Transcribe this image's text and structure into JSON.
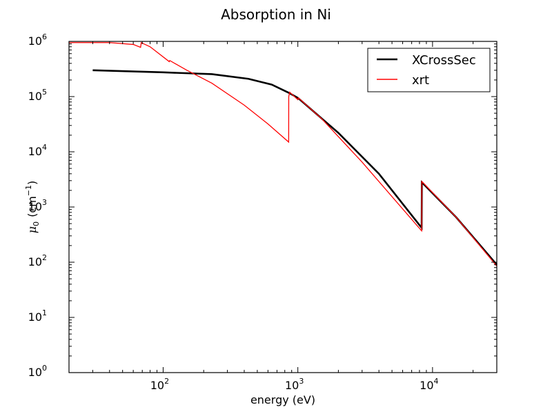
{
  "chart_data": {
    "type": "line",
    "title": "Absorption in Ni",
    "xlabel": "energy (eV)",
    "ylabel": {
      "symbol": "μ",
      "subscript": "0",
      "unit_open": "(cm",
      "unit_exp": "−1",
      "unit_close": ")"
    },
    "x_scale": "log",
    "y_scale": "log",
    "xlim": [
      20,
      30000
    ],
    "ylim": [
      1,
      1000000
    ],
    "grid": false,
    "legend_position": "top-right",
    "x_ticks": [
      {
        "base": "10",
        "exp": "2",
        "value": 100
      },
      {
        "base": "10",
        "exp": "3",
        "value": 1000
      },
      {
        "base": "10",
        "exp": "4",
        "value": 10000
      }
    ],
    "y_ticks": [
      {
        "base": "10",
        "exp": "0",
        "value": 1
      },
      {
        "base": "10",
        "exp": "1",
        "value": 10
      },
      {
        "base": "10",
        "exp": "2",
        "value": 100
      },
      {
        "base": "10",
        "exp": "3",
        "value": 1000
      },
      {
        "base": "10",
        "exp": "4",
        "value": 10000
      },
      {
        "base": "10",
        "exp": "5",
        "value": 100000
      },
      {
        "base": "10",
        "exp": "6",
        "value": 1000000
      }
    ],
    "series": [
      {
        "name": "XCrossSec",
        "color": "#000000",
        "x": [
          30,
          100,
          230,
          430,
          640,
          840,
          1000,
          2000,
          4000,
          8300,
          8333,
          15000,
          30000
        ],
        "y": [
          300000,
          275000,
          255000,
          210000,
          165000,
          120000,
          95000,
          22000,
          4000,
          420,
          2800,
          650,
          90
        ]
      },
      {
        "name": "xrt",
        "color": "#ff0000",
        "x": [
          20,
          40,
          60,
          68,
          68.8,
          80,
          111,
          112,
          150,
          230,
          400,
          600,
          855,
          856,
          870,
          1000,
          1008,
          1500,
          3000,
          8300,
          8333,
          15000,
          30000
        ],
        "y": [
          950000,
          950000,
          880000,
          780000,
          950000,
          800000,
          430000,
          450000,
          300000,
          175000,
          70000,
          32000,
          15000,
          100000,
          120000,
          88000,
          95000,
          40000,
          6500,
          370,
          2900,
          650,
          85
        ]
      }
    ]
  }
}
